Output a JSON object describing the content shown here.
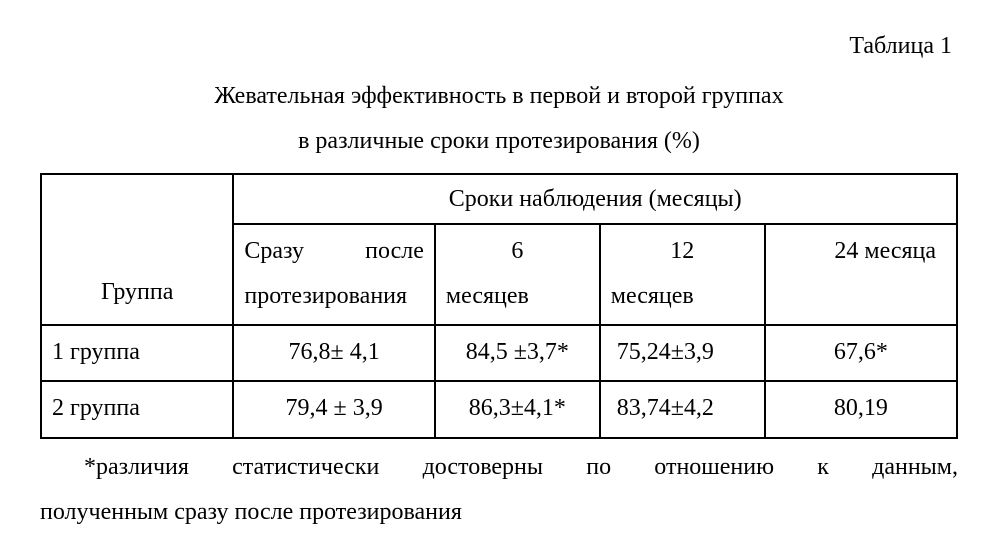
{
  "table_label": "Таблица 1",
  "caption": {
    "line1": "Жевательная эффективность в первой и второй группах",
    "line2": "в различные сроки  протезирования  (%)"
  },
  "headers": {
    "group": "Группа",
    "observation": "Сроки наблюдения (месяцы)",
    "col0_line1": "Сразу после",
    "col0_line2": "протезирования",
    "col1_line1": "6",
    "col1_line2": "месяцев",
    "col2_line1": "12",
    "col2_line2": "месяцев",
    "col3": "24 месяца"
  },
  "rows": [
    {
      "group": "1 группа",
      "c0": "76,8±  4,1",
      "c1": "84,5 ±3,7*",
      "c2": "75,24±3,9",
      "c3": "67,6*"
    },
    {
      "group": "2 группа",
      "c0": "79,4 ± 3,9",
      "c1": "86,3±4,1*",
      "c2": "83,74±4,2",
      "c3": "80,19"
    }
  ],
  "footnote": {
    "line1": "*различия статистически достоверны по отношению к данным,",
    "line2": "полученным сразу после протезирования"
  },
  "colors": {
    "text": "#000000",
    "background": "#ffffff",
    "border": "#000000"
  },
  "font": {
    "family": "Times New Roman",
    "size_pt": 18
  }
}
